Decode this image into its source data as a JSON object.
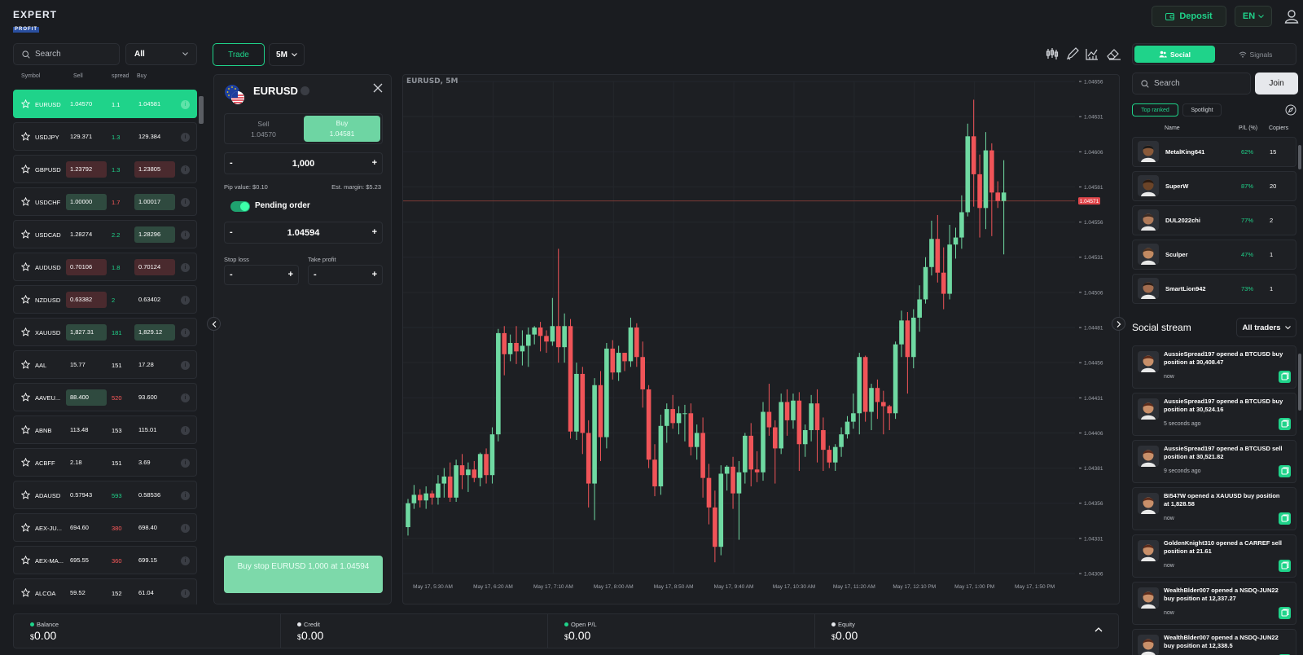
{
  "header": {
    "logo_top": "EXPERT",
    "logo_bottom": "PROFIT",
    "deposit_label": "Deposit",
    "language": "EN"
  },
  "instruments": {
    "search_placeholder": "Search",
    "filter_value": "All",
    "columns": {
      "symbol": "Symbol",
      "sell": "Sell",
      "spread": "spread",
      "buy": "Buy"
    },
    "rows": [
      {
        "symbol": "EURUSD",
        "sell": "1.04570",
        "spread": "1.1",
        "buy": "1.04581",
        "sell_tone": "",
        "buy_tone": "",
        "spread_tone": "",
        "active": true
      },
      {
        "symbol": "USDJPY",
        "sell": "129.371",
        "spread": "1.3",
        "buy": "129.384",
        "sell_tone": "",
        "buy_tone": "",
        "spread_tone": "green",
        "active": false
      },
      {
        "symbol": "GBPUSD",
        "sell": "1.23792",
        "spread": "1.3",
        "buy": "1.23805",
        "sell_tone": "red",
        "buy_tone": "red",
        "spread_tone": "green",
        "active": false
      },
      {
        "symbol": "USDCHF",
        "sell": "1.00000",
        "spread": "1.7",
        "buy": "1.00017",
        "sell_tone": "green",
        "buy_tone": "green",
        "spread_tone": "red",
        "active": false
      },
      {
        "symbol": "USDCAD",
        "sell": "1.28274",
        "spread": "2.2",
        "buy": "1.28296",
        "sell_tone": "",
        "buy_tone": "green",
        "spread_tone": "green",
        "active": false
      },
      {
        "symbol": "AUDUSD",
        "sell": "0.70106",
        "spread": "1.8",
        "buy": "0.70124",
        "sell_tone": "red",
        "buy_tone": "red",
        "spread_tone": "green",
        "active": false
      },
      {
        "symbol": "NZDUSD",
        "sell": "0.63382",
        "spread": "2",
        "buy": "0.63402",
        "sell_tone": "red",
        "buy_tone": "",
        "spread_tone": "green",
        "active": false
      },
      {
        "symbol": "XAUUSD",
        "sell": "1,827.31",
        "spread": "181",
        "buy": "1,829.12",
        "sell_tone": "green",
        "buy_tone": "green",
        "spread_tone": "green",
        "active": false
      },
      {
        "symbol": "AAL",
        "sell": "15.77",
        "spread": "151",
        "buy": "17.28",
        "sell_tone": "",
        "buy_tone": "",
        "spread_tone": "",
        "active": false
      },
      {
        "symbol": "AAVEU...",
        "sell": "88.400",
        "spread": "520",
        "buy": "93.600",
        "sell_tone": "green",
        "buy_tone": "",
        "spread_tone": "red",
        "active": false
      },
      {
        "symbol": "ABNB",
        "sell": "113.48",
        "spread": "153",
        "buy": "115.01",
        "sell_tone": "",
        "buy_tone": "",
        "spread_tone": "",
        "active": false
      },
      {
        "symbol": "ACBFF",
        "sell": "2.18",
        "spread": "151",
        "buy": "3.69",
        "sell_tone": "",
        "buy_tone": "",
        "spread_tone": "",
        "active": false
      },
      {
        "symbol": "ADAUSD",
        "sell": "0.57943",
        "spread": "593",
        "buy": "0.58536",
        "sell_tone": "",
        "buy_tone": "",
        "spread_tone": "green",
        "active": false
      },
      {
        "symbol": "AEX-JU...",
        "sell": "694.60",
        "spread": "380",
        "buy": "698.40",
        "sell_tone": "",
        "buy_tone": "",
        "spread_tone": "red",
        "active": false
      },
      {
        "symbol": "AEX-MA...",
        "sell": "695.55",
        "spread": "360",
        "buy": "699.15",
        "sell_tone": "",
        "buy_tone": "",
        "spread_tone": "red",
        "active": false
      },
      {
        "symbol": "ALCOA",
        "sell": "59.52",
        "spread": "152",
        "buy": "61.04",
        "sell_tone": "",
        "buy_tone": "",
        "spread_tone": "",
        "active": false
      }
    ]
  },
  "trade_tabs": {
    "trade_label": "Trade",
    "timeframe": "5M"
  },
  "order": {
    "symbol": "EURUSD",
    "sell_label": "Sell",
    "sell_price": "1.04570",
    "buy_label": "Buy",
    "buy_price": "1.04581",
    "amount": "1,000",
    "pip_value": "Pip value: $0.10",
    "est_margin": "Est. margin: $5.23",
    "pending_label": "Pending order",
    "pending_price": "1.04594",
    "stop_loss_label": "Stop loss",
    "take_profit_label": "Take profit",
    "submit_label": "Buy stop EURUSD 1,000 at 1.04594"
  },
  "chart_title": "EURUSD, 5M",
  "chart_data": {
    "type": "candlestick",
    "title": "EURUSD, 5M",
    "current_price": "1.04571",
    "current_value": 1.04571,
    "ylim": [
      1.04306,
      1.04656
    ],
    "y_ticks": [
      "1.04656",
      "1.04631",
      "1.04606",
      "1.04581",
      "1.04556",
      "1.04531",
      "1.04506",
      "1.04481",
      "1.04456",
      "1.04431",
      "1.04406",
      "1.04381",
      "1.04356",
      "1.04331",
      "1.04306"
    ],
    "x_ticks": [
      "May 17, 5:30 AM",
      "May 17, 6:20 AM",
      "May 17, 7:10 AM",
      "May 17, 8:00 AM",
      "May 17, 8:50 AM",
      "May 17, 9:40 AM",
      "May 17, 10:30 AM",
      "May 17, 11:20 AM",
      "May 17, 12:10 PM",
      "May 17, 1:00 PM",
      "May 17, 1:50 PM"
    ],
    "candles": [
      [
        1.04339,
        1.04356,
        1.04333,
        1.04359
      ],
      [
        1.04356,
        1.04362,
        1.04352,
        1.04369
      ],
      [
        1.04362,
        1.04358,
        1.04353,
        1.04366
      ],
      [
        1.04358,
        1.04363,
        1.04352,
        1.04368
      ],
      [
        1.04363,
        1.0436,
        1.04355,
        1.04365
      ],
      [
        1.0436,
        1.0437,
        1.04355,
        1.04376
      ],
      [
        1.0437,
        1.04375,
        1.0436,
        1.04381
      ],
      [
        1.04375,
        1.0436,
        1.04357,
        1.04385
      ],
      [
        1.0436,
        1.04383,
        1.04357,
        1.04387
      ],
      [
        1.04383,
        1.04376,
        1.04366,
        1.04391
      ],
      [
        1.04376,
        1.0438,
        1.04364,
        1.04385
      ],
      [
        1.0438,
        1.04374,
        1.04371,
        1.04386
      ],
      [
        1.04374,
        1.04391,
        1.04368,
        1.04392
      ],
      [
        1.04391,
        1.04376,
        1.0437,
        1.04395
      ],
      [
        1.04376,
        1.04405,
        1.0437,
        1.0441
      ],
      [
        1.04405,
        1.04477,
        1.044,
        1.0448
      ],
      [
        1.04477,
        1.04462,
        1.04447,
        1.04482
      ],
      [
        1.04462,
        1.0447,
        1.04457,
        1.04476
      ],
      [
        1.0447,
        1.04464,
        1.04455,
        1.04482
      ],
      [
        1.04464,
        1.04468,
        1.04454,
        1.04479
      ],
      [
        1.04468,
        1.04476,
        1.04453,
        1.04481
      ],
      [
        1.04476,
        1.04481,
        1.04469,
        1.04482
      ],
      [
        1.04481,
        1.04475,
        1.04464,
        1.04485
      ],
      [
        1.04475,
        1.04471,
        1.04463,
        1.04479
      ],
      [
        1.04471,
        1.04482,
        1.04468,
        1.04502
      ],
      [
        1.04482,
        1.04467,
        1.04456,
        1.04537
      ],
      [
        1.04467,
        1.04482,
        1.04456,
        1.04491
      ],
      [
        1.04482,
        1.04407,
        1.04402,
        1.04487
      ],
      [
        1.04407,
        1.04448,
        1.04401,
        1.04456
      ],
      [
        1.04448,
        1.04406,
        1.04391,
        1.04453
      ],
      [
        1.04406,
        1.0437,
        1.04353,
        1.04415
      ],
      [
        1.0437,
        1.0444,
        1.04344,
        1.04445
      ],
      [
        1.0444,
        1.04403,
        1.04386,
        1.0445
      ],
      [
        1.04403,
        1.04466,
        1.04395,
        1.0447
      ],
      [
        1.04466,
        1.04449,
        1.04444,
        1.04472
      ],
      [
        1.04449,
        1.04463,
        1.04443,
        1.04468
      ],
      [
        1.04463,
        1.04457,
        1.0445,
        1.04461
      ],
      [
        1.04457,
        1.04481,
        1.04453,
        1.04488
      ],
      [
        1.04481,
        1.0446,
        1.04453,
        1.04484
      ],
      [
        1.0446,
        1.04437,
        1.04424,
        1.04471
      ],
      [
        1.04437,
        1.04387,
        1.04381,
        1.0444
      ],
      [
        1.04387,
        1.04368,
        1.04361,
        1.04398
      ],
      [
        1.04368,
        1.04411,
        1.04362,
        1.04419
      ],
      [
        1.04411,
        1.04423,
        1.04399,
        1.04427
      ],
      [
        1.04423,
        1.04413,
        1.04409,
        1.04433
      ],
      [
        1.04413,
        1.0442,
        1.04405,
        1.04425
      ],
      [
        1.0442,
        1.0442,
        1.044,
        1.04426
      ],
      [
        1.0442,
        1.04396,
        1.0439,
        1.04427
      ],
      [
        1.04396,
        1.04406,
        1.04387,
        1.04412
      ],
      [
        1.04406,
        1.04374,
        1.0436,
        1.04417
      ],
      [
        1.04374,
        1.04353,
        1.04341,
        1.04384
      ],
      [
        1.04353,
        1.04325,
        1.04314,
        1.04365
      ],
      [
        1.04325,
        1.04377,
        1.04319,
        1.04383
      ],
      [
        1.04377,
        1.04382,
        1.04365,
        1.04383
      ],
      [
        1.04382,
        1.04363,
        1.04352,
        1.04389
      ],
      [
        1.04363,
        1.04378,
        1.0433,
        1.04386
      ],
      [
        1.04378,
        1.04404,
        1.0437,
        1.04406
      ],
      [
        1.04404,
        1.0438,
        1.04368,
        1.04413
      ],
      [
        1.0438,
        1.04378,
        1.04371,
        1.04393
      ],
      [
        1.04378,
        1.04421,
        1.04372,
        1.04428
      ],
      [
        1.04421,
        1.0441,
        1.04404,
        1.04441
      ],
      [
        1.0441,
        1.04395,
        1.0437,
        1.04415
      ],
      [
        1.04395,
        1.04428,
        1.04391,
        1.04434
      ],
      [
        1.04428,
        1.04415,
        1.04404,
        1.04437
      ],
      [
        1.04415,
        1.04429,
        1.04409,
        1.04434
      ],
      [
        1.04429,
        1.04398,
        1.04379,
        1.04435
      ],
      [
        1.04398,
        1.04408,
        1.04389,
        1.04412
      ],
      [
        1.04408,
        1.04427,
        1.044,
        1.04433
      ],
      [
        1.04427,
        1.04408,
        1.04385,
        1.04437
      ],
      [
        1.04408,
        1.04394,
        1.04379,
        1.04417
      ],
      [
        1.04394,
        1.04385,
        1.04381,
        1.04397
      ],
      [
        1.04385,
        1.04396,
        1.04379,
        1.04398
      ],
      [
        1.04396,
        1.04405,
        1.04389,
        1.0441
      ],
      [
        1.04405,
        1.04414,
        1.04402,
        1.04418
      ],
      [
        1.04414,
        1.0442,
        1.04409,
        1.04434
      ],
      [
        1.0442,
        1.0446,
        1.04405,
        1.04463
      ],
      [
        1.0446,
        1.04421,
        1.04414,
        1.04461
      ],
      [
        1.04421,
        1.04438,
        1.04408,
        1.04441
      ],
      [
        1.04438,
        1.04428,
        1.04416,
        1.04444
      ],
      [
        1.04428,
        1.04425,
        1.04405,
        1.04436
      ],
      [
        1.04425,
        1.0442,
        1.04408,
        1.04426
      ],
      [
        1.0442,
        1.04469,
        1.04416,
        1.04471
      ],
      [
        1.04469,
        1.04486,
        1.0446,
        1.04493
      ],
      [
        1.04486,
        1.0446,
        1.04434,
        1.04492
      ],
      [
        1.0446,
        1.04488,
        1.04452,
        1.04494
      ],
      [
        1.04488,
        1.04501,
        1.04478,
        1.04511
      ],
      [
        1.04501,
        1.04524,
        1.04498,
        1.04531
      ],
      [
        1.04524,
        1.04544,
        1.04518,
        1.04557
      ],
      [
        1.04544,
        1.0452,
        1.04513,
        1.04561
      ],
      [
        1.0452,
        1.04505,
        1.04494,
        1.04538
      ],
      [
        1.04505,
        1.0454,
        1.04501,
        1.04554
      ],
      [
        1.0454,
        1.04545,
        1.0453,
        1.04552
      ],
      [
        1.04545,
        1.04563,
        1.04537,
        1.04575
      ],
      [
        1.04563,
        1.04617,
        1.0456,
        1.04626
      ],
      [
        1.04617,
        1.0459,
        1.04567,
        1.04643
      ],
      [
        1.0459,
        1.04566,
        1.04545,
        1.04604
      ],
      [
        1.04566,
        1.04607,
        1.04551,
        1.0462
      ],
      [
        1.04607,
        1.04577,
        1.04546,
        1.04612
      ],
      [
        1.04577,
        1.04571,
        1.04566,
        1.04585
      ],
      [
        1.04571,
        1.04577,
        1.04533,
        1.046
      ]
    ]
  },
  "account": {
    "balance_label": "Balance",
    "balance_value": "0.00",
    "credit_label": "Credit",
    "credit_value": "0.00",
    "openpl_label": "Open P/L",
    "openpl_value": "0.00",
    "equity_label": "Equity",
    "equity_value": "0.00",
    "currency_symbol": "$"
  },
  "social": {
    "tab_social": "Social",
    "tab_signals": "Signals",
    "search_placeholder": "Search",
    "join_label": "Join",
    "filter_top": "Top ranked",
    "filter_spotlight": "Spotlight",
    "columns": {
      "name": "Name",
      "pl": "P/L (%)",
      "copiers": "Copiers"
    },
    "traders": [
      {
        "name": "MetalKing641",
        "pl": "62%",
        "copiers": "15"
      },
      {
        "name": "SuperW",
        "pl": "87%",
        "copiers": "20"
      },
      {
        "name": "DUL2022chi",
        "pl": "77%",
        "copiers": "2"
      },
      {
        "name": "Sculper",
        "pl": "47%",
        "copiers": "1"
      },
      {
        "name": "SmartLion942",
        "pl": "73%",
        "copiers": "1"
      }
    ],
    "stream_title": "Social stream",
    "stream_filter": "All traders",
    "posts": [
      {
        "text": "AussieSpread197 opened a BTCUSD buy position at 30,408.47",
        "time": "now"
      },
      {
        "text": "AussieSpread197 opened a BTCUSD buy position at 30,524.16",
        "time": "5 seconds ago"
      },
      {
        "text": "AussieSpread197 opened a BTCUSD sell position at 30,521.82",
        "time": "9 seconds ago"
      },
      {
        "text": "BI547W opened a XAUUSD buy position at 1,828.58",
        "time": "now"
      },
      {
        "text": "GoldenKnight310 opened a CARREF sell position at 21.61",
        "time": "now"
      },
      {
        "text": "WealthBlder007 opened a NSDQ-JUN22 buy position at 12,337.27",
        "time": "now"
      },
      {
        "text": "WealthBlder007 opened a NSDQ-JUN22 buy position at 12,338.5",
        "time": "now"
      }
    ]
  },
  "colors": {
    "accent": "#1fd38a",
    "bull": "#6fd9a2",
    "bear": "#f05458",
    "background": "#1a1c20",
    "panel": "#1e2024"
  }
}
